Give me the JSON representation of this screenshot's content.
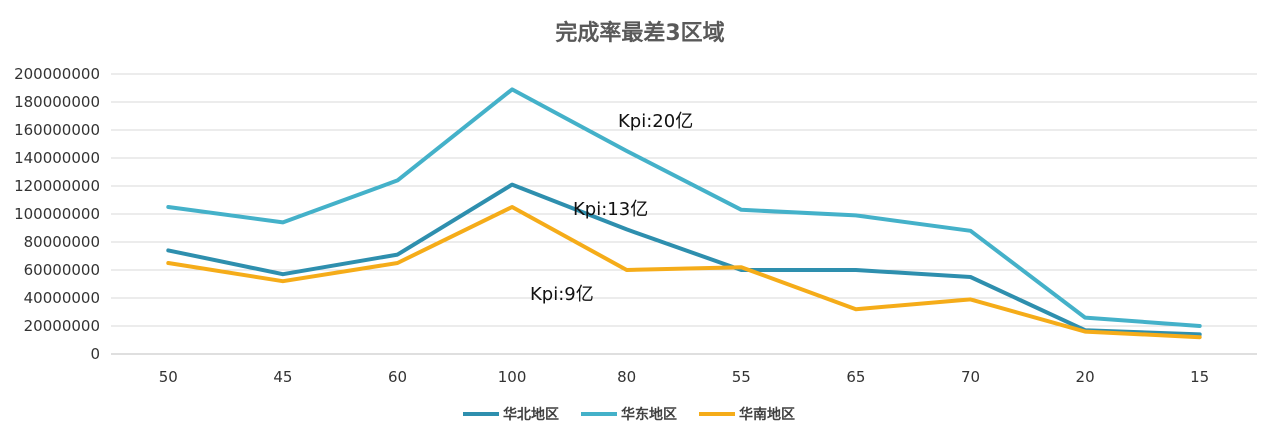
{
  "chart_data": {
    "type": "line",
    "title": "完成率最差3区域",
    "categories": [
      "50",
      "45",
      "60",
      "100",
      "80",
      "55",
      "65",
      "70",
      "20",
      "15"
    ],
    "ylim": [
      0,
      200000000
    ],
    "yticks": [
      0,
      20000000,
      40000000,
      60000000,
      80000000,
      100000000,
      120000000,
      140000000,
      160000000,
      180000000,
      200000000
    ],
    "grid": true,
    "legend_position": "bottom",
    "series": [
      {
        "name": "华北地区",
        "color": "#2e8fae",
        "values": [
          74000000,
          57000000,
          71000000,
          121000000,
          89000000,
          60000000,
          60000000,
          55000000,
          17000000,
          14000000
        ]
      },
      {
        "name": "华东地区",
        "color": "#44b1c9",
        "values": [
          105000000,
          94000000,
          124000000,
          189000000,
          145000000,
          103000000,
          99000000,
          88000000,
          26000000,
          20000000
        ]
      },
      {
        "name": "华南地区",
        "color": "#f5ac19",
        "values": [
          65000000,
          52000000,
          65000000,
          105000000,
          60000000,
          62000000,
          32000000,
          39000000,
          16000000,
          12000000
        ]
      }
    ],
    "annotations": [
      {
        "text": "Kpi:20亿"
      },
      {
        "text": "Kpi:13亿"
      },
      {
        "text": "Kpi:9亿"
      }
    ]
  }
}
